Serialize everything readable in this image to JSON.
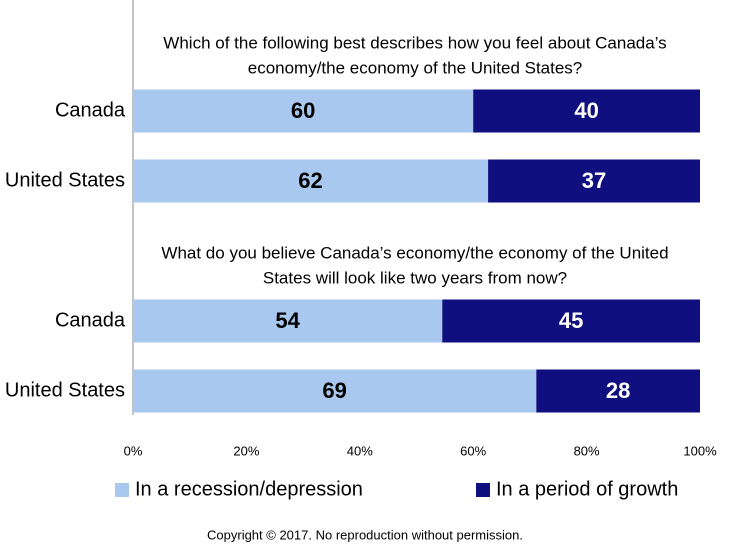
{
  "chart_data": {
    "type": "bar",
    "orientation": "horizontal",
    "stack": "percent",
    "annotations": [
      [
        "Which of the following best describes how you feel about Canada’s",
        "economy/the economy of the United States?"
      ],
      [
        "What do you believe Canada’s economy/the economy of the United",
        "States will look like two years from now?"
      ]
    ],
    "categories": [
      "Canada",
      "United States",
      "Canada",
      "United States"
    ],
    "series": [
      {
        "name": "In a recession/depression",
        "color": "#a9c8ef",
        "label_color": "#000000",
        "values": [
          60,
          62,
          54,
          69
        ]
      },
      {
        "name": "In a period of growth",
        "color": "#0f0f80",
        "label_color": "#ffffff",
        "values": [
          40,
          37,
          45,
          28
        ]
      }
    ],
    "xlim": [
      0,
      100
    ],
    "xticks": [
      {
        "value": 0,
        "label": "0%"
      },
      {
        "value": 20,
        "label": "20%"
      },
      {
        "value": 40,
        "label": "40%"
      },
      {
        "value": 60,
        "label": "60%"
      },
      {
        "value": 80,
        "label": "80%"
      },
      {
        "value": 100,
        "label": "100%"
      }
    ],
    "legend": "bottom"
  },
  "footer": "Copyright © 2017. No reproduction without permission."
}
